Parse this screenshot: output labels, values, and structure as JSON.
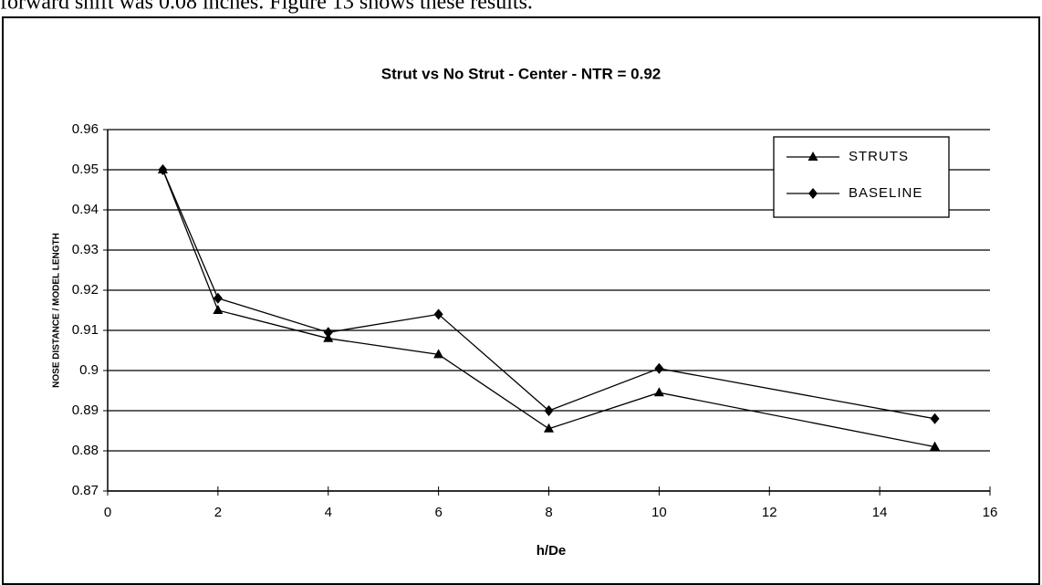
{
  "caption": "forward shift was 0.08 inches. Figure 13 shows these results.",
  "chart_data": {
    "type": "line",
    "title": "Strut vs No Strut - Center - NTR = 0.92",
    "x_label": "h/De",
    "y_label": "NOSE DISTANCE / MODEL LENGTH",
    "x": [
      1,
      2,
      4,
      6,
      8,
      10,
      15
    ],
    "series": [
      {
        "name": "STRUTS",
        "color": "#000000",
        "marker": "triangle",
        "values": [
          0.95,
          0.915,
          0.908,
          0.904,
          0.8855,
          0.8945,
          0.881
        ]
      },
      {
        "name": "BASELINE",
        "color": "#000000",
        "marker": "diamond",
        "values": [
          0.95,
          0.918,
          0.9095,
          0.914,
          0.89,
          0.9005,
          0.888
        ]
      }
    ],
    "xlim": [
      0,
      16
    ],
    "xticks": [
      0,
      2,
      4,
      6,
      8,
      10,
      12,
      14,
      16
    ],
    "ylim": [
      0.87,
      0.96
    ],
    "yticks": [
      0.87,
      0.88,
      0.89,
      0.9,
      0.91,
      0.92,
      0.93,
      0.94,
      0.95,
      0.96
    ],
    "grid": true,
    "legend": "upper right"
  }
}
